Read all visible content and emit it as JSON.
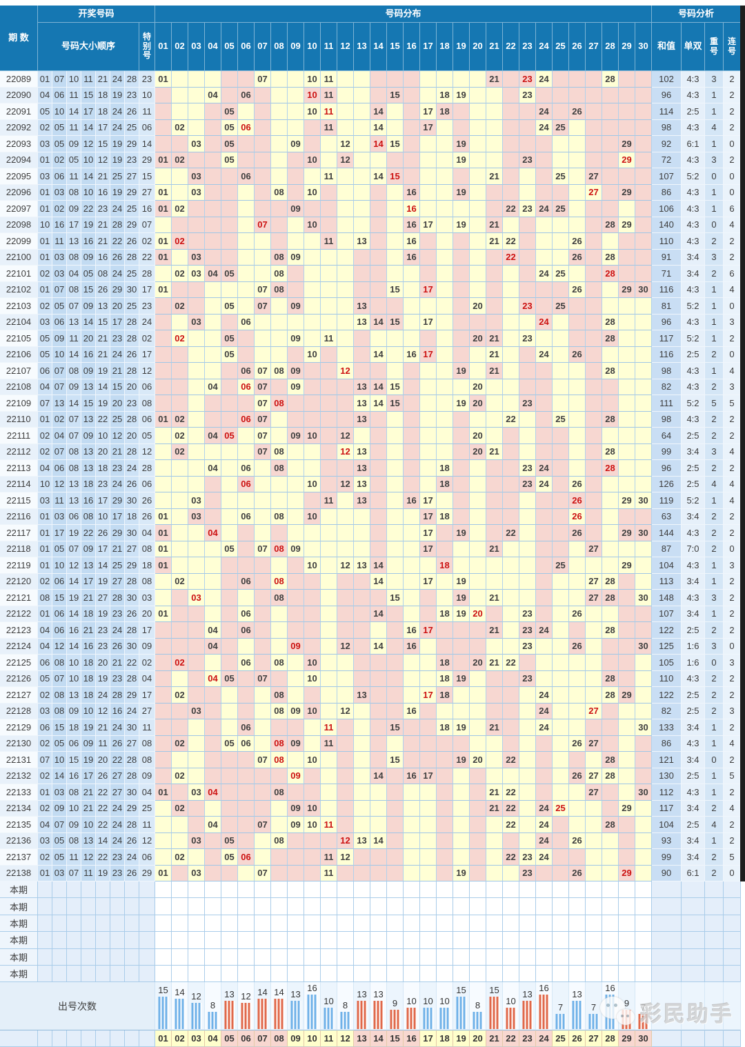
{
  "header": {
    "period": "期 数",
    "group_draw": "开奖号码",
    "col_order": "号码大小顺序",
    "col_special": "特别号",
    "group_dist": "号码分布",
    "group_analysis": "号码分析",
    "grid_cols": [
      "01",
      "02",
      "03",
      "04",
      "05",
      "06",
      "07",
      "08",
      "09",
      "10",
      "11",
      "12",
      "13",
      "14",
      "15",
      "16",
      "17",
      "18",
      "19",
      "20",
      "21",
      "22",
      "23",
      "24",
      "25",
      "26",
      "27",
      "28",
      "29",
      "30"
    ],
    "col_sum": "和值",
    "col_ratio": "单双",
    "col_repeat": "重号",
    "col_consec": "连号"
  },
  "main_table": {
    "rows": [
      [
        "22089",
        [
          1,
          7,
          10,
          11,
          21,
          24,
          28
        ],
        23,
        102,
        "4:3",
        3,
        2
      ],
      [
        "22090",
        [
          4,
          6,
          11,
          15,
          18,
          19,
          23
        ],
        10,
        96,
        "4:3",
        1,
        2
      ],
      [
        "22091",
        [
          5,
          10,
          14,
          17,
          18,
          24,
          26
        ],
        11,
        114,
        "2:5",
        1,
        2
      ],
      [
        "22092",
        [
          2,
          5,
          11,
          14,
          17,
          24,
          25
        ],
        6,
        98,
        "4:3",
        4,
        2
      ],
      [
        "22093",
        [
          3,
          5,
          9,
          12,
          15,
          19,
          29
        ],
        14,
        92,
        "6:1",
        1,
        0
      ],
      [
        "22094",
        [
          1,
          2,
          5,
          10,
          12,
          19,
          23
        ],
        29,
        72,
        "4:3",
        3,
        2
      ],
      [
        "22095",
        [
          3,
          6,
          11,
          14,
          21,
          25,
          27
        ],
        15,
        107,
        "5:2",
        0,
        0
      ],
      [
        "22096",
        [
          1,
          3,
          8,
          10,
          16,
          19,
          29
        ],
        27,
        86,
        "4:3",
        1,
        0
      ],
      [
        "22097",
        [
          1,
          2,
          9,
          22,
          23,
          24,
          25
        ],
        16,
        106,
        "4:3",
        1,
        6
      ],
      [
        "22098",
        [
          10,
          16,
          17,
          19,
          21,
          28,
          29
        ],
        7,
        140,
        "4:3",
        0,
        4
      ],
      [
        "22099",
        [
          1,
          11,
          13,
          16,
          21,
          22,
          26
        ],
        2,
        110,
        "4:3",
        2,
        2
      ],
      [
        "22100",
        [
          1,
          3,
          8,
          9,
          16,
          26,
          28
        ],
        22,
        91,
        "3:4",
        3,
        2
      ],
      [
        "22101",
        [
          2,
          3,
          4,
          5,
          8,
          24,
          25
        ],
        28,
        71,
        "3:4",
        2,
        6
      ],
      [
        "22102",
        [
          1,
          7,
          8,
          15,
          26,
          29,
          30
        ],
        17,
        116,
        "4:3",
        1,
        4
      ],
      [
        "22103",
        [
          2,
          5,
          7,
          9,
          13,
          20,
          25
        ],
        23,
        81,
        "5:2",
        1,
        0
      ],
      [
        "22104",
        [
          3,
          6,
          13,
          14,
          15,
          17,
          28
        ],
        24,
        96,
        "4:3",
        1,
        3
      ],
      [
        "22105",
        [
          5,
          9,
          11,
          20,
          21,
          23,
          28
        ],
        2,
        117,
        "5:2",
        1,
        2
      ],
      [
        "22106",
        [
          5,
          10,
          14,
          16,
          21,
          24,
          26
        ],
        17,
        116,
        "2:5",
        2,
        0
      ],
      [
        "22107",
        [
          6,
          7,
          8,
          9,
          19,
          21,
          28
        ],
        12,
        98,
        "4:3",
        1,
        4
      ],
      [
        "22108",
        [
          4,
          7,
          9,
          13,
          14,
          15,
          20
        ],
        6,
        82,
        "4:3",
        2,
        3
      ],
      [
        "22109",
        [
          7,
          13,
          14,
          15,
          19,
          20,
          23
        ],
        8,
        111,
        "5:2",
        5,
        5
      ],
      [
        "22110",
        [
          1,
          2,
          7,
          13,
          22,
          25,
          28
        ],
        6,
        98,
        "4:3",
        2,
        2
      ],
      [
        "22111",
        [
          2,
          4,
          7,
          9,
          10,
          12,
          20
        ],
        5,
        64,
        "2:5",
        2,
        2
      ],
      [
        "22112",
        [
          2,
          7,
          8,
          13,
          20,
          21,
          28
        ],
        12,
        99,
        "3:4",
        3,
        4
      ],
      [
        "22113",
        [
          4,
          6,
          8,
          13,
          18,
          23,
          24
        ],
        28,
        96,
        "2:5",
        2,
        2
      ],
      [
        "22114",
        [
          10,
          12,
          13,
          18,
          23,
          24,
          26
        ],
        6,
        126,
        "2:5",
        4,
        4
      ],
      [
        "22115",
        [
          3,
          11,
          13,
          16,
          17,
          29,
          30
        ],
        26,
        119,
        "5:2",
        1,
        4
      ],
      [
        "22116",
        [
          1,
          3,
          6,
          8,
          10,
          17,
          18
        ],
        26,
        63,
        "3:4",
        2,
        2
      ],
      [
        "22117",
        [
          1,
          17,
          19,
          22,
          26,
          29,
          30
        ],
        4,
        144,
        "4:3",
        2,
        2
      ],
      [
        "22118",
        [
          1,
          5,
          7,
          9,
          17,
          21,
          27
        ],
        8,
        87,
        "7:0",
        2,
        0
      ],
      [
        "22119",
        [
          1,
          10,
          12,
          13,
          14,
          25,
          29
        ],
        18,
        104,
        "4:3",
        1,
        3
      ],
      [
        "22120",
        [
          2,
          6,
          14,
          17,
          19,
          27,
          28
        ],
        8,
        113,
        "3:4",
        1,
        2
      ],
      [
        "22121",
        [
          8,
          15,
          19,
          21,
          27,
          28,
          30
        ],
        3,
        148,
        "4:3",
        3,
        2
      ],
      [
        "22122",
        [
          1,
          6,
          14,
          18,
          19,
          23,
          26
        ],
        20,
        107,
        "3:4",
        1,
        2
      ],
      [
        "22123",
        [
          4,
          6,
          16,
          21,
          23,
          24,
          28
        ],
        17,
        122,
        "2:5",
        2,
        2
      ],
      [
        "22124",
        [
          4,
          12,
          14,
          16,
          23,
          26,
          30
        ],
        9,
        125,
        "1:6",
        3,
        0
      ],
      [
        "22125",
        [
          6,
          8,
          10,
          18,
          20,
          21,
          22
        ],
        2,
        105,
        "1:6",
        0,
        3
      ],
      [
        "22126",
        [
          5,
          7,
          10,
          18,
          19,
          23,
          28
        ],
        4,
        110,
        "4:3",
        2,
        2
      ],
      [
        "22127",
        [
          2,
          8,
          13,
          18,
          24,
          28,
          29
        ],
        17,
        122,
        "2:5",
        2,
        2
      ],
      [
        "22128",
        [
          3,
          8,
          9,
          10,
          12,
          16,
          24
        ],
        27,
        82,
        "2:5",
        2,
        3
      ],
      [
        "22129",
        [
          6,
          15,
          18,
          19,
          21,
          24,
          30
        ],
        11,
        133,
        "3:4",
        1,
        2
      ],
      [
        "22130",
        [
          2,
          5,
          6,
          9,
          11,
          26,
          27
        ],
        8,
        86,
        "4:3",
        1,
        4
      ],
      [
        "22131",
        [
          7,
          10,
          15,
          19,
          20,
          22,
          28
        ],
        8,
        121,
        "3:4",
        0,
        2
      ],
      [
        "22132",
        [
          2,
          14,
          16,
          17,
          26,
          27,
          28
        ],
        9,
        130,
        "2:5",
        1,
        5
      ],
      [
        "22133",
        [
          1,
          3,
          8,
          21,
          22,
          27,
          30
        ],
        4,
        112,
        "4:3",
        1,
        2
      ],
      [
        "22134",
        [
          2,
          9,
          10,
          21,
          22,
          24,
          29
        ],
        25,
        117,
        "3:4",
        2,
        4
      ],
      [
        "22135",
        [
          4,
          7,
          9,
          10,
          22,
          24,
          28
        ],
        11,
        104,
        "2:5",
        4,
        2
      ],
      [
        "22136",
        [
          3,
          5,
          8,
          13,
          14,
          24,
          26
        ],
        12,
        93,
        "3:4",
        1,
        2
      ],
      [
        "22137",
        [
          2,
          5,
          11,
          12,
          22,
          23,
          24
        ],
        6,
        99,
        "3:4",
        2,
        5
      ],
      [
        "22138",
        [
          1,
          3,
          7,
          11,
          19,
          23,
          26
        ],
        29,
        90,
        "6:1",
        2,
        0
      ]
    ]
  },
  "benqi": {
    "label": "本期",
    "count": 6
  },
  "footer": {
    "label": "出号次数"
  },
  "chart_data": {
    "type": "bar",
    "title": "出号次数",
    "categories": [
      "01",
      "02",
      "03",
      "04",
      "05",
      "06",
      "07",
      "08",
      "09",
      "10",
      "11",
      "12",
      "13",
      "14",
      "15",
      "16",
      "17",
      "18",
      "19",
      "20",
      "21",
      "22",
      "23",
      "24",
      "25",
      "26",
      "27",
      "28",
      "29",
      "30"
    ],
    "values": [
      15,
      14,
      12,
      8,
      13,
      12,
      14,
      14,
      13,
      16,
      10,
      8,
      13,
      13,
      9,
      10,
      10,
      10,
      15,
      8,
      15,
      10,
      13,
      16,
      7,
      13,
      7,
      16,
      9,
      7
    ],
    "ylim": [
      0,
      16
    ],
    "xlabel": "",
    "ylabel": "",
    "grid": false,
    "legend": "none",
    "bar_group_pattern": "groups of four alternate blue/red starting blue at 01"
  },
  "watermark": {
    "text": "彩民助手"
  },
  "shading": {
    "initial_pink_cols": [
      5,
      6,
      14,
      15,
      16,
      21,
      22,
      23,
      25,
      26,
      27,
      29,
      30
    ]
  },
  "colors": {
    "header_bg": "#1577b2",
    "header_text": "#ffffff",
    "grid_yellow": "#ffffd5",
    "grid_pink": "#f7d7d1",
    "num_cell_a": "#cde2f6",
    "num_cell_b": "#c2dbf2",
    "special_cell": "#d9e9f8",
    "period_a": "#f7fbfe",
    "period_b": "#e8f1fa",
    "sum_cell": "#c9def4",
    "ratio_cell": "#e6f0fa",
    "repeat_cell": "#d4e6f6",
    "consec_cell": "#eaf3fb",
    "value_text": "#3f3f3f",
    "special_text": "#cc1111",
    "bar_blue": "#6fb1e8",
    "bar_red": "#e0684a",
    "axis_yellow": "#ffffcc",
    "axis_pink": "#f8d7d0",
    "benqi_label_bg": "#eef5fc",
    "benqi_area_bg": "#e4eefa",
    "benqi_grid_bg": "#ffffff",
    "footer_label_bg": "#e4eff9",
    "bar_cell_a": "#ecf5fd",
    "bar_cell_b": "#f7fbff",
    "scrollbar": "#1e1e1e"
  }
}
